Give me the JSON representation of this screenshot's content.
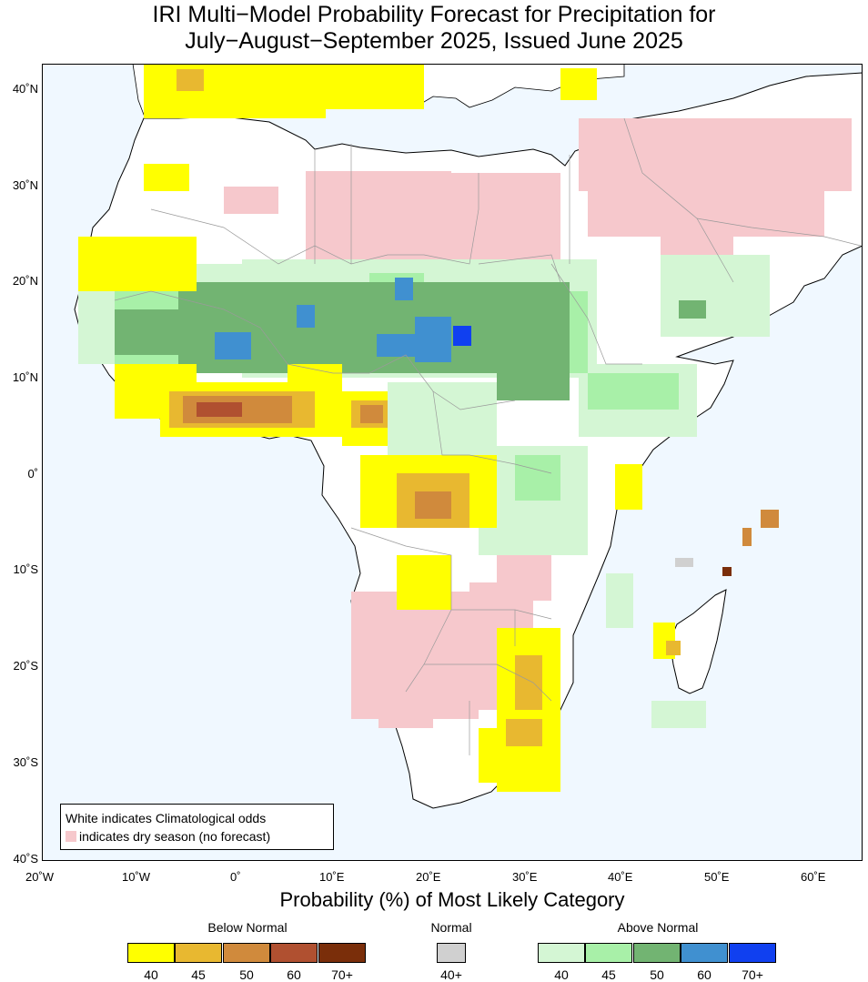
{
  "title_line1": "IRI Multi−Model Probability Forecast for Precipitation for",
  "title_line2": "July−August−September 2025, Issued June 2025",
  "lat_labels": [
    "40˚N",
    "30˚N",
    "20˚N",
    "10˚N",
    "0˚",
    "10˚S",
    "20˚S",
    "30˚S",
    "40˚S"
  ],
  "lon_labels": [
    "20˚W",
    "10˚W",
    "0˚",
    "10˚E",
    "20˚E",
    "30˚E",
    "40˚E",
    "50˚E",
    "60˚E"
  ],
  "legend_box": {
    "line1": "White indicates Climatological odds",
    "line2": "indicates dry season (no forecast)"
  },
  "colorbar_title": "Probability (%) of Most Likely Category",
  "below_normal": {
    "label": "Below Normal",
    "ticks": [
      "40",
      "45",
      "50",
      "60",
      "70+"
    ],
    "colors": [
      "#ffff00",
      "#e8b830",
      "#d08a3c",
      "#b05030",
      "#7a2e0a"
    ]
  },
  "normal": {
    "label": "Normal",
    "ticks": [
      "40+"
    ],
    "colors": [
      "#d0d0d0"
    ]
  },
  "above_normal": {
    "label": "Above Normal",
    "ticks": [
      "40",
      "45",
      "50",
      "60",
      "70+"
    ],
    "colors": [
      "#d4f6d4",
      "#a8f0a8",
      "#72b472",
      "#4090d0",
      "#1040f0"
    ]
  },
  "colors": {
    "ocean": "#f0f8ff",
    "land": "#ffffff",
    "dry_season": "#f6c8cc",
    "coastline": "#000000",
    "borders": "#9a9a9a"
  }
}
